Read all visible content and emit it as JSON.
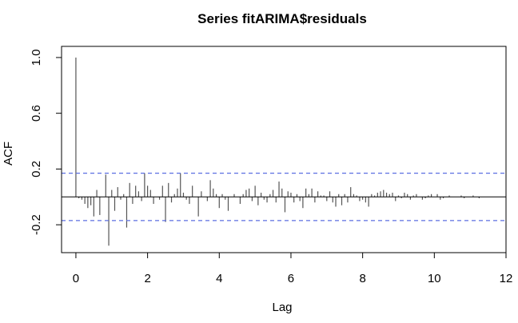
{
  "chart_data": {
    "type": "bar",
    "title": "Series  fitARIMA$residuals",
    "xlabel": "Lag",
    "ylabel": "ACF",
    "xlim": [
      -0.4,
      12.0
    ],
    "ylim": [
      -0.4,
      1.08
    ],
    "x_ticks": [
      0,
      2,
      4,
      6,
      8,
      10,
      12
    ],
    "x_tick_labels": [
      "0",
      "2",
      "4",
      "6",
      "8",
      "10",
      "12"
    ],
    "y_ticks": [
      -0.2,
      0.2,
      0.6,
      1.0
    ],
    "y_tick_labels": [
      "-0.2",
      "0.2",
      "0.6",
      "1.0"
    ],
    "confidence_bound": 0.17,
    "colors": {
      "bars": "#555555",
      "confidence_lines": "#5b6ee1",
      "axes": "#000000"
    },
    "lag": [
      0.0,
      0.083,
      0.167,
      0.25,
      0.333,
      0.417,
      0.5,
      0.583,
      0.667,
      0.75,
      0.833,
      0.917,
      1.0,
      1.083,
      1.167,
      1.25,
      1.333,
      1.417,
      1.5,
      1.583,
      1.667,
      1.75,
      1.833,
      1.917,
      2.0,
      2.083,
      2.167,
      2.25,
      2.333,
      2.417,
      2.5,
      2.583,
      2.667,
      2.75,
      2.833,
      2.917,
      3.0,
      3.083,
      3.167,
      3.25,
      3.333,
      3.417,
      3.5,
      3.583,
      3.667,
      3.75,
      3.833,
      3.917,
      4.0,
      4.083,
      4.167,
      4.25,
      4.333,
      4.417,
      4.5,
      4.583,
      4.667,
      4.75,
      4.833,
      4.917,
      5.0,
      5.083,
      5.167,
      5.25,
      5.333,
      5.417,
      5.5,
      5.583,
      5.667,
      5.75,
      5.833,
      5.917,
      6.0,
      6.083,
      6.167,
      6.25,
      6.333,
      6.417,
      6.5,
      6.583,
      6.667,
      6.75,
      6.833,
      6.917,
      7.0,
      7.083,
      7.167,
      7.25,
      7.333,
      7.417,
      7.5,
      7.583,
      7.667,
      7.75,
      7.833,
      7.917,
      8.0,
      8.083,
      8.167,
      8.25,
      8.333,
      8.417,
      8.5,
      8.583,
      8.667,
      8.75,
      8.833,
      8.917,
      9.0,
      9.083,
      9.167,
      9.25,
      9.333,
      9.417,
      9.5,
      9.583,
      9.667,
      9.75,
      9.833,
      9.917,
      10.0,
      10.083,
      10.167,
      10.25,
      10.333,
      10.417,
      10.5,
      10.583,
      10.667,
      10.75,
      10.833,
      10.917,
      11.0,
      11.083,
      11.167,
      11.25,
      11.333
    ],
    "acf": [
      1.0,
      -0.01,
      -0.02,
      -0.05,
      -0.08,
      -0.06,
      -0.14,
      0.05,
      -0.13,
      0.0,
      0.16,
      -0.35,
      0.05,
      -0.1,
      0.07,
      -0.02,
      0.02,
      -0.22,
      0.1,
      -0.05,
      0.08,
      0.04,
      -0.03,
      0.17,
      0.08,
      0.05,
      -0.05,
      0.0,
      -0.02,
      0.08,
      -0.18,
      0.1,
      -0.04,
      0.02,
      0.06,
      0.17,
      0.03,
      -0.02,
      -0.05,
      0.08,
      0.0,
      -0.14,
      0.04,
      0.0,
      -0.03,
      0.12,
      0.06,
      0.02,
      -0.08,
      0.02,
      -0.02,
      -0.1,
      0.0,
      0.02,
      0.0,
      -0.05,
      0.02,
      0.05,
      0.06,
      -0.03,
      0.08,
      -0.06,
      0.03,
      -0.02,
      -0.04,
      0.02,
      0.05,
      -0.04,
      0.11,
      0.06,
      -0.11,
      0.04,
      0.03,
      -0.04,
      0.02,
      -0.03,
      -0.08,
      0.06,
      0.02,
      0.06,
      -0.04,
      0.04,
      0.01,
      0.01,
      -0.03,
      0.04,
      -0.04,
      -0.07,
      0.02,
      -0.06,
      0.02,
      -0.04,
      0.07,
      0.02,
      0.01,
      -0.03,
      -0.02,
      -0.04,
      -0.07,
      0.02,
      0.01,
      0.03,
      0.04,
      0.05,
      0.03,
      0.02,
      0.03,
      -0.03,
      0.01,
      -0.01,
      0.03,
      0.02,
      -0.02,
      0.01,
      0.02,
      0.0,
      -0.02,
      -0.01,
      0.01,
      0.02,
      0.0,
      0.02,
      -0.02,
      -0.01,
      0.0,
      0.01,
      0.0,
      0.0,
      0.0,
      0.01,
      -0.01,
      0.0,
      0.0,
      0.01,
      0.0,
      -0.01,
      0.0
    ]
  }
}
